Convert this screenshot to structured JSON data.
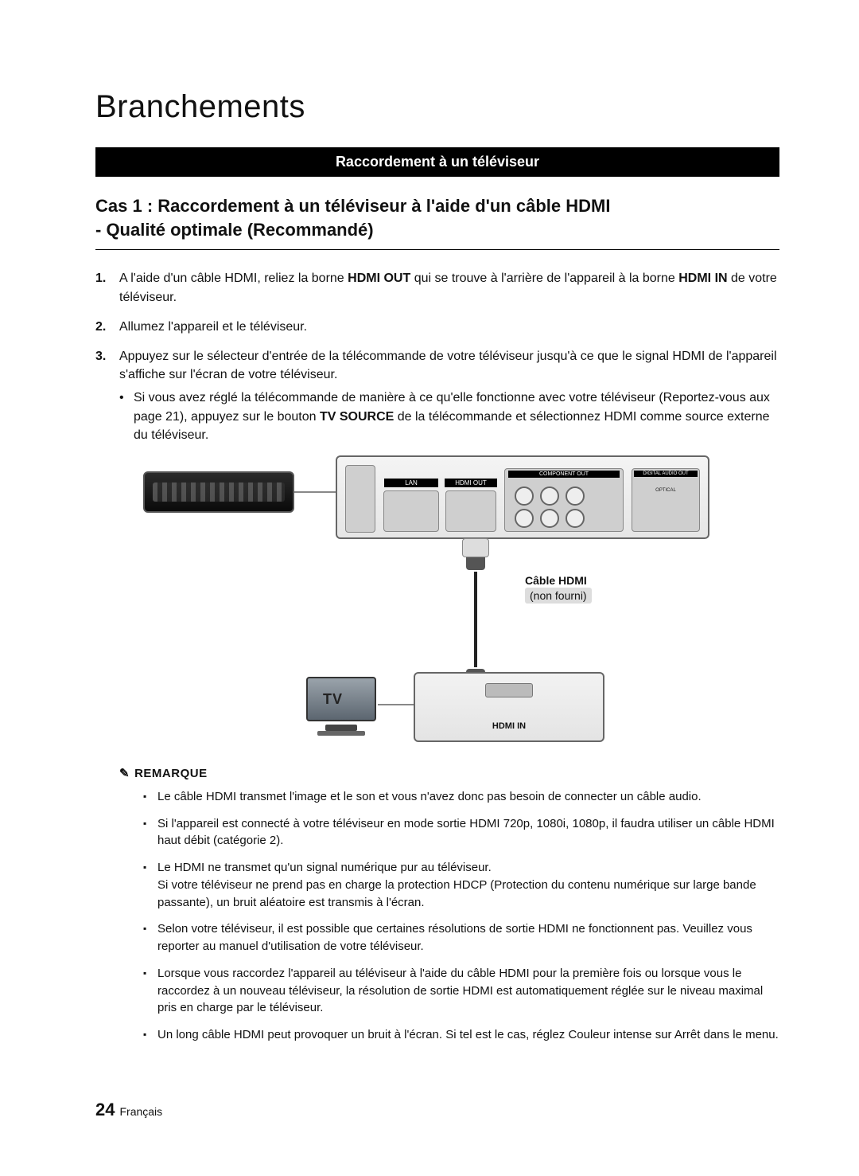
{
  "page": {
    "title": "Branchements",
    "number": "24",
    "language": "Français"
  },
  "section_bar": "Raccordement à un téléviseur",
  "case_heading": {
    "line1": "Cas 1 : Raccordement à un téléviseur à l'aide d'un câble HDMI",
    "line2": "- Qualité optimale (Recommandé)"
  },
  "steps": [
    {
      "pre": "A l'aide d'un câble HDMI, reliez la borne ",
      "b1": "HDMI OUT",
      "mid": " qui se trouve à l'arrière de l'appareil à la borne ",
      "b2": "HDMI IN",
      "post": " de votre téléviseur."
    },
    {
      "text": "Allumez l'appareil et le téléviseur."
    },
    {
      "text": "Appuyez sur le sélecteur d'entrée de la télécommande de votre téléviseur jusqu'à ce que le signal HDMI de l'appareil s'affiche sur l'écran de votre téléviseur.",
      "bullet_pre": "Si vous avez réglé la télécommande de manière à ce qu'elle fonctionne avec votre téléviseur (Reportez-vous aux page 21), appuyez sur le bouton ",
      "bullet_b": "TV SOURCE",
      "bullet_post": " de la télécommande et sélectionnez HDMI comme source externe du téléviseur."
    }
  ],
  "diagram": {
    "cable_label": "Câble HDMI",
    "cable_sub": "(non fourni)",
    "hdmi_in": "HDMI IN",
    "tv_text": "TV",
    "panel_labels": {
      "lan": "LAN",
      "hdmi_out": "HDMI OUT",
      "component": "COMPONENT OUT",
      "digital": "DIGITAL AUDIO OUT",
      "optical": "OPTICAL"
    }
  },
  "remark_title": "REMARQUE",
  "notes": [
    "Le câble HDMI transmet l'image et le son et vous n'avez donc pas besoin de connecter un câble audio.",
    "Si l'appareil est connecté à votre téléviseur en mode sortie HDMI 720p, 1080i, 1080p, il faudra utiliser un câble HDMI haut débit (catégorie 2).",
    "Le HDMI ne transmet qu'un signal numérique pur au téléviseur.\nSi votre téléviseur ne prend pas en charge la protection HDCP (Protection du contenu numérique sur large bande passante), un bruit aléatoire est transmis à l'écran.",
    "Selon votre téléviseur, il est possible que certaines résolutions de sortie HDMI ne fonctionnent pas. Veuillez vous reporter au manuel d'utilisation de votre téléviseur.",
    "Lorsque vous raccordez l'appareil au téléviseur à l'aide du câble HDMI pour la première fois ou lorsque vous le raccordez à un nouveau téléviseur, la résolution de sortie HDMI est automatiquement réglée sur le niveau maximal pris en charge par le téléviseur.",
    "Un long câble HDMI peut provoquer un bruit à l'écran. Si tel est le cas, réglez Couleur intense sur Arrêt dans le menu."
  ],
  "colors": {
    "bar_bg": "#000000",
    "bar_text": "#ffffff",
    "page_bg": "#ffffff",
    "diagram_border": "#666666"
  }
}
